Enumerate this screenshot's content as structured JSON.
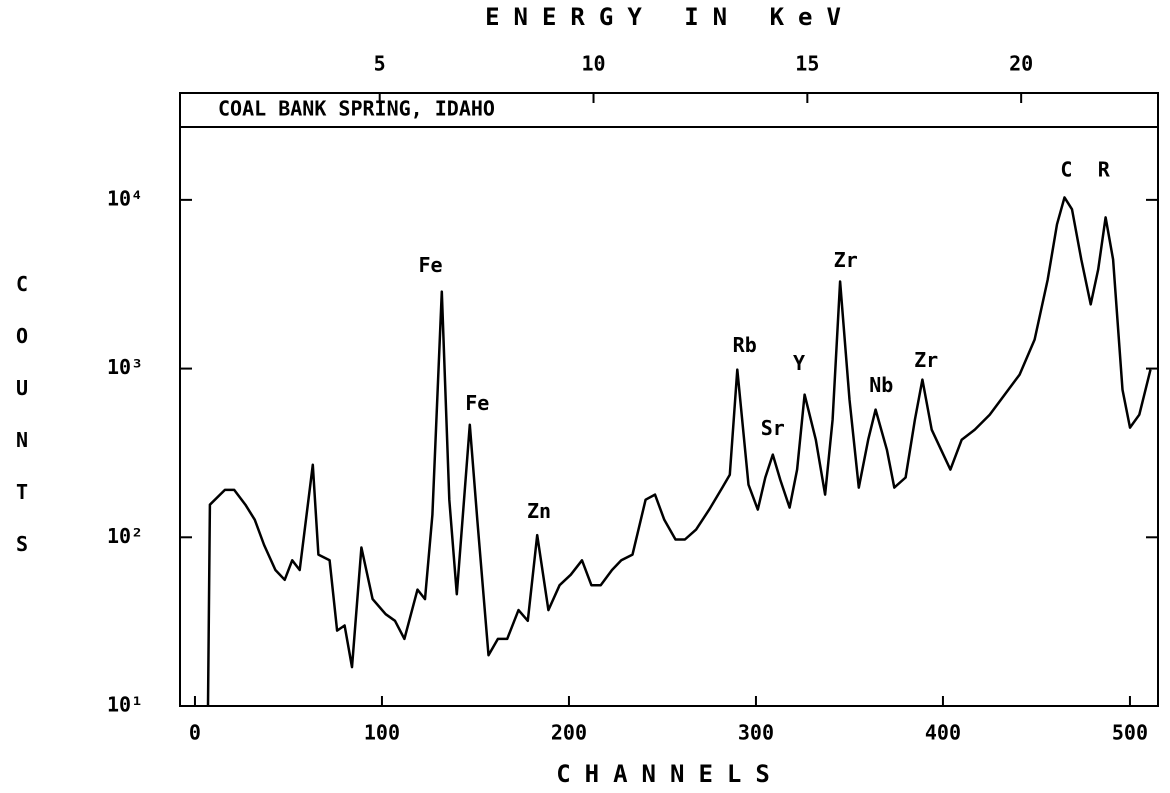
{
  "chart_data": {
    "type": "line",
    "title": "COAL BANK SPRING, IDAHO",
    "xlabel": "CHANNELS",
    "ylabel": "COUNTS",
    "x2label": "ENERGY IN KeV",
    "x": [
      7,
      8,
      16,
      21,
      27,
      32,
      37,
      43,
      48,
      52,
      56,
      63,
      66,
      72,
      76,
      80,
      84,
      89,
      95,
      102,
      107,
      112,
      119,
      123,
      127,
      132,
      136,
      140,
      147,
      151,
      157,
      162,
      167,
      173,
      178,
      183,
      189,
      195,
      201,
      207,
      212,
      217,
      223,
      228,
      234,
      241,
      246,
      251,
      257,
      262,
      268,
      275,
      282,
      286,
      290,
      296,
      301,
      305,
      309,
      313,
      318,
      322,
      326,
      332,
      337,
      341,
      345,
      350,
      355,
      360,
      364,
      370,
      374,
      380,
      385,
      389,
      394,
      399,
      404,
      410,
      417,
      425,
      433,
      441,
      449,
      456,
      461,
      465,
      469,
      474,
      479,
      483,
      487,
      491,
      496,
      500,
      505,
      511
    ],
    "values": [
      10,
      156,
      191,
      191,
      156,
      127,
      90,
      64,
      56,
      73,
      64,
      269,
      79,
      73,
      28,
      30,
      17,
      87,
      43,
      35,
      32,
      25,
      49,
      43,
      136,
      2860,
      167,
      46,
      465,
      127,
      20,
      25,
      25,
      37,
      32,
      103,
      37,
      52,
      60,
      73,
      52,
      52,
      64,
      73,
      79,
      167,
      179,
      127,
      97,
      97,
      111,
      146,
      197,
      235,
      986,
      205,
      146,
      226,
      309,
      219,
      150,
      252,
      701,
      379,
      179,
      498,
      3280,
      655,
      197,
      379,
      571,
      330,
      197,
      226,
      498,
      860,
      434,
      330,
      252,
      379,
      434,
      533,
      701,
      921,
      1485,
      3370,
      7160,
      10350,
      8790,
      4430,
      2400,
      3870,
      7870,
      4430,
      750,
      447,
      533,
      986
    ],
    "color": "#000000",
    "log_y": true,
    "xlim": [
      -8,
      515
    ],
    "xticks": [
      0,
      100,
      200,
      300,
      400,
      500
    ],
    "x2lim": [
      0.33,
      23.2
    ],
    "x2ticks": [
      5,
      10,
      15,
      20
    ],
    "ylim": [
      10,
      43000
    ],
    "yticks": [
      {
        "value": 10,
        "label": "10¹"
      },
      {
        "value": 100,
        "label": "10²"
      },
      {
        "value": 1000,
        "label": "10³"
      },
      {
        "value": 10000,
        "label": "10⁴"
      }
    ],
    "annotations": [
      {
        "text": "Fe",
        "x": 126,
        "y": 4040
      },
      {
        "text": "Fe",
        "x": 151,
        "y": 611
      },
      {
        "text": "Zn",
        "x": 184,
        "y": 140
      },
      {
        "text": "Rb",
        "x": 294,
        "y": 1350
      },
      {
        "text": "Sr",
        "x": 309,
        "y": 434
      },
      {
        "text": "Y",
        "x": 323,
        "y": 1056
      },
      {
        "text": "Zr",
        "x": 348,
        "y": 4310
      },
      {
        "text": "Nb",
        "x": 367,
        "y": 782
      },
      {
        "text": "Zr",
        "x": 391,
        "y": 1100
      },
      {
        "text": "C",
        "x": 466,
        "y": 14800
      },
      {
        "text": "R",
        "x": 486,
        "y": 14800
      }
    ]
  }
}
